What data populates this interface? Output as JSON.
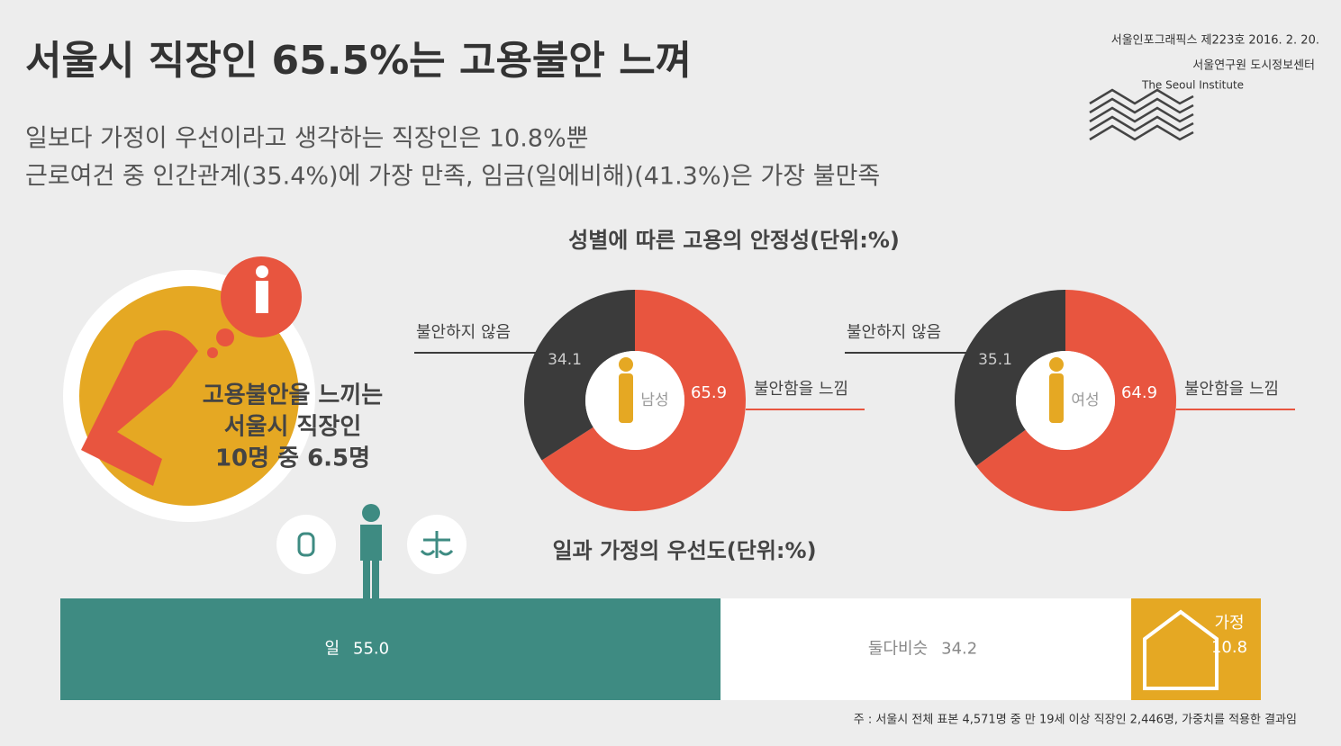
{
  "header": {
    "title": "서울시 직장인 65.5%는 고용불안 느껴",
    "subtitle_lines": [
      "일보다 가정이 우선이라고 생각하는 직장인은 10.8%뿐",
      "근로여건 중 인간관계(35.4%)에 가장 만족, 임금(일에비해)(41.3%)은 가장 불만족"
    ],
    "source": [
      "서울인포그래픽스 제223호 2016. 2. 20.",
      "서울연구원 도시정보센터",
      "The Seoul Institute"
    ]
  },
  "callout": [
    "고용불안을 느끼는",
    "서울시 직장인",
    "10명 중 6.5명"
  ],
  "chart_data": [
    {
      "type": "donut",
      "title": "성별에 따른 고용의 안정성(단위:%)",
      "center_label": "남성",
      "categories": [
        "불안함을 느낌",
        "불안하지 않음"
      ],
      "values": [
        65.9,
        34.1
      ],
      "colors": [
        "#e8553f",
        "#3b3b3b"
      ]
    },
    {
      "type": "donut",
      "center_label": "여성",
      "categories": [
        "불안함을 느낌",
        "불안하지 않음"
      ],
      "values": [
        64.9,
        35.1
      ],
      "colors": [
        "#e8553f",
        "#3b3b3b"
      ]
    },
    {
      "type": "stacked-bar",
      "title": "일과 가정의 우선도(단위:%)",
      "categories": [
        "일",
        "둘다비슷",
        "가정"
      ],
      "values": [
        55.0,
        34.2,
        10.8
      ],
      "value_labels": [
        "55.0",
        "34.2",
        "10.8"
      ],
      "colors": [
        "#3e8b82",
        "#ffffff",
        "#e5a823"
      ]
    }
  ],
  "footnote": "주 : 서울시 전체 표본 4,571명 중 만 19세 이상 직장인 2,446명, 가중치를 적용한 결과임"
}
